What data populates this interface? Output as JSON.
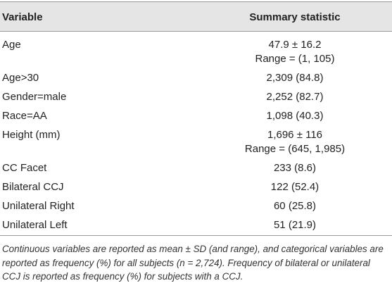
{
  "table": {
    "header": [
      "Variable",
      "Summary statistic"
    ],
    "rows": [
      [
        "Age",
        [
          "47.9 ± 16.2",
          "Range = (1, 105)"
        ]
      ],
      [
        "Age>30",
        [
          "2,309 (84.8)"
        ]
      ],
      [
        "Gender=male",
        [
          "2,252 (82.7)"
        ]
      ],
      [
        "Race=AA",
        [
          "1,098 (40.3)"
        ]
      ],
      [
        "Height (mm)",
        [
          "1,696 ± 116",
          "Range = (645, 1,985)"
        ]
      ],
      [
        "CC Facet",
        [
          "233 (8.6)"
        ]
      ],
      [
        "Bilateral CCJ",
        [
          "122 (52.4)"
        ]
      ],
      [
        "Unilateral Right",
        [
          "60 (25.8)"
        ]
      ],
      [
        "Unilateral Left",
        [
          "51 (21.9)"
        ]
      ]
    ],
    "footnote": "Continuous variables are reported as mean ± SD (and range), and categorical variables are reported as frequency (%) for all subjects (n = 2,724). Frequency of bilateral or unilateral CCJ is reported as frequency (%) for subjects with a CCJ."
  }
}
